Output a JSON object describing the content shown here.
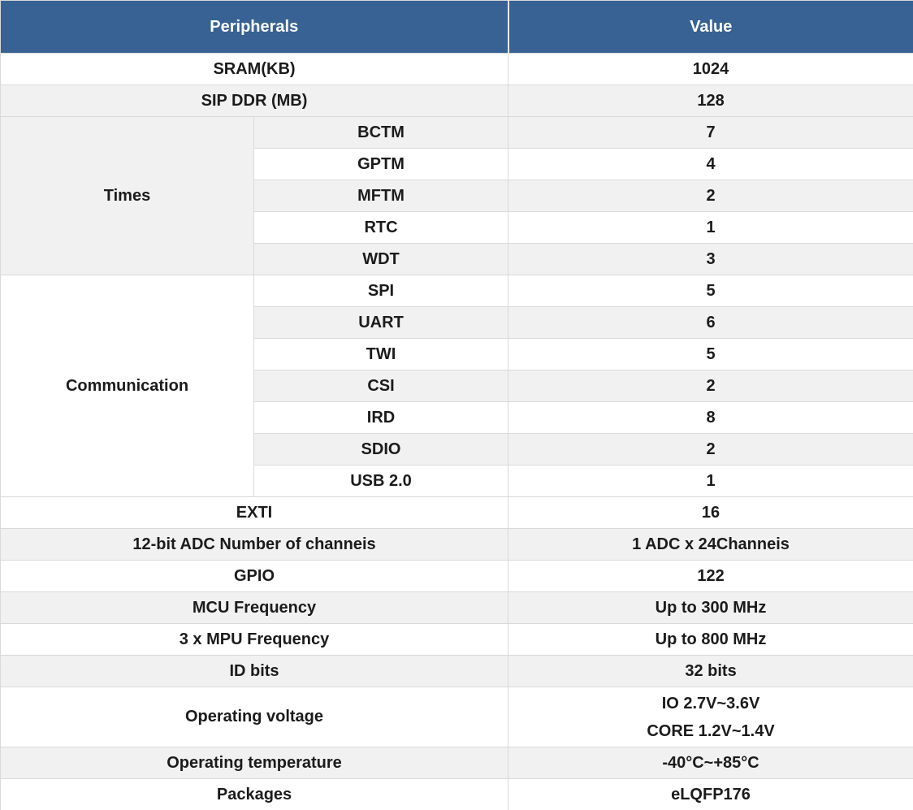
{
  "colors": {
    "header_bg": "#376293",
    "header_text": "#ffffff",
    "row_bg": "#ffffff",
    "row_alt_bg": "#f1f1f1",
    "border": "#d9d9d9",
    "text": "#1b1b1b"
  },
  "chart_data": {
    "type": "table",
    "columns": [
      "Peripherals",
      "Value"
    ],
    "rows": [
      {
        "group": "",
        "peripheral": "SRAM(KB)",
        "value": "1024"
      },
      {
        "group": "",
        "peripheral": "SIP DDR (MB)",
        "value": "128"
      },
      {
        "group": "Times",
        "peripheral": "BCTM",
        "value": "7"
      },
      {
        "group": "Times",
        "peripheral": "GPTM",
        "value": "4"
      },
      {
        "group": "Times",
        "peripheral": "MFTM",
        "value": "2"
      },
      {
        "group": "Times",
        "peripheral": "RTC",
        "value": "1"
      },
      {
        "group": "Times",
        "peripheral": "WDT",
        "value": "3"
      },
      {
        "group": "Communication",
        "peripheral": "SPI",
        "value": "5"
      },
      {
        "group": "Communication",
        "peripheral": "UART",
        "value": "6"
      },
      {
        "group": "Communication",
        "peripheral": "TWI",
        "value": "5"
      },
      {
        "group": "Communication",
        "peripheral": "CSI",
        "value": "2"
      },
      {
        "group": "Communication",
        "peripheral": "IRD",
        "value": "8"
      },
      {
        "group": "Communication",
        "peripheral": "SDIO",
        "value": "2"
      },
      {
        "group": "Communication",
        "peripheral": "USB 2.0",
        "value": "1"
      },
      {
        "group": "",
        "peripheral": "EXTI",
        "value": "16"
      },
      {
        "group": "",
        "peripheral": "12-bit ADC Number of channeis",
        "value": "1 ADC x 24Channeis"
      },
      {
        "group": "",
        "peripheral": "GPIO",
        "value": "122"
      },
      {
        "group": "",
        "peripheral": "MCU Frequency",
        "value": "Up to 300 MHz"
      },
      {
        "group": "",
        "peripheral": "3 x MPU Frequency",
        "value": "Up to 800 MHz"
      },
      {
        "group": "",
        "peripheral": "ID bits",
        "value": "32 bits"
      },
      {
        "group": "",
        "peripheral": "Operating voltage",
        "value": "IO 2.7V~3.6V\nCORE 1.2V~1.4V"
      },
      {
        "group": "",
        "peripheral": "Operating temperature",
        "value": "-40°C~+85°C"
      },
      {
        "group": "",
        "peripheral": "Packages",
        "value": "eLQFP176"
      }
    ]
  }
}
